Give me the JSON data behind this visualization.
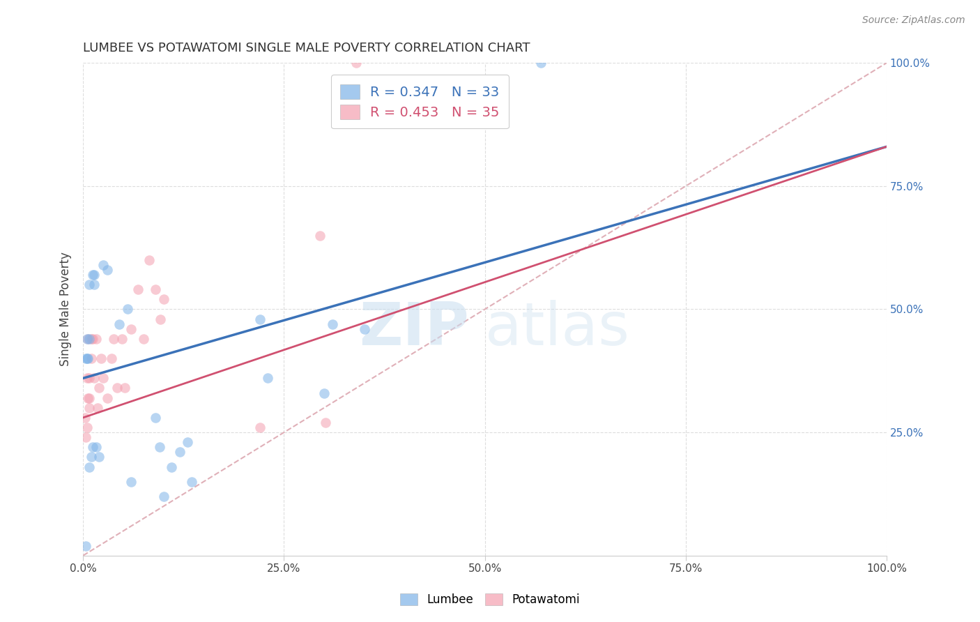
{
  "title": "LUMBEE VS POTAWATOMI SINGLE MALE POVERTY CORRELATION CHART",
  "source": "Source: ZipAtlas.com",
  "ylabel": "Single Male Poverty",
  "lumbee_R": 0.347,
  "lumbee_N": 33,
  "potawatomi_R": 0.453,
  "potawatomi_N": 35,
  "lumbee_color": "#7EB3E8",
  "potawatomi_color": "#F4A0B0",
  "lumbee_line_color": "#3B72B8",
  "potawatomi_line_color": "#D05070",
  "diagonal_color": "#E0B0B8",
  "lumbee_x": [
    0.003,
    0.008,
    0.008,
    0.012,
    0.014,
    0.014,
    0.003,
    0.005,
    0.005,
    0.006,
    0.008,
    0.01,
    0.012,
    0.016,
    0.02,
    0.025,
    0.03,
    0.045,
    0.055,
    0.06,
    0.09,
    0.095,
    0.1,
    0.11,
    0.12,
    0.13,
    0.135,
    0.22,
    0.23,
    0.3,
    0.31,
    0.35,
    0.57
  ],
  "lumbee_y": [
    0.02,
    0.18,
    0.55,
    0.57,
    0.57,
    0.55,
    0.4,
    0.44,
    0.4,
    0.4,
    0.44,
    0.2,
    0.22,
    0.22,
    0.2,
    0.59,
    0.58,
    0.47,
    0.5,
    0.15,
    0.28,
    0.22,
    0.12,
    0.18,
    0.21,
    0.23,
    0.15,
    0.48,
    0.36,
    0.33,
    0.47,
    0.46,
    1.0
  ],
  "potawatomi_x": [
    0.002,
    0.003,
    0.005,
    0.005,
    0.006,
    0.006,
    0.008,
    0.008,
    0.008,
    0.01,
    0.01,
    0.012,
    0.014,
    0.016,
    0.018,
    0.02,
    0.022,
    0.025,
    0.03,
    0.035,
    0.038,
    0.042,
    0.048,
    0.052,
    0.06,
    0.068,
    0.075,
    0.082,
    0.09,
    0.096,
    0.1,
    0.22,
    0.295,
    0.302,
    0.34
  ],
  "potawatomi_y": [
    0.28,
    0.24,
    0.26,
    0.36,
    0.32,
    0.44,
    0.36,
    0.32,
    0.3,
    0.44,
    0.4,
    0.44,
    0.36,
    0.44,
    0.3,
    0.34,
    0.4,
    0.36,
    0.32,
    0.4,
    0.44,
    0.34,
    0.44,
    0.34,
    0.46,
    0.54,
    0.44,
    0.6,
    0.54,
    0.48,
    0.52,
    0.26,
    0.65,
    0.27,
    1.0
  ],
  "xlim": [
    0.0,
    1.0
  ],
  "ylim": [
    0.0,
    1.0
  ],
  "xticks": [
    0.0,
    0.25,
    0.5,
    0.75,
    1.0
  ],
  "xtick_labels": [
    "0.0%",
    "25.0%",
    "50.0%",
    "75.0%",
    "100.0%"
  ],
  "yticks": [
    0.25,
    0.5,
    0.75,
    1.0
  ],
  "ytick_labels": [
    "25.0%",
    "50.0%",
    "75.0%",
    "100.0%"
  ],
  "background_color": "#FFFFFF",
  "grid_color": "#DDDDDD",
  "marker_size": 110,
  "marker_alpha": 0.55,
  "lumbee_line_intercept": 0.36,
  "lumbee_line_slope": 0.47,
  "potawatomi_line_intercept": 0.28,
  "potawatomi_line_slope": 0.55
}
